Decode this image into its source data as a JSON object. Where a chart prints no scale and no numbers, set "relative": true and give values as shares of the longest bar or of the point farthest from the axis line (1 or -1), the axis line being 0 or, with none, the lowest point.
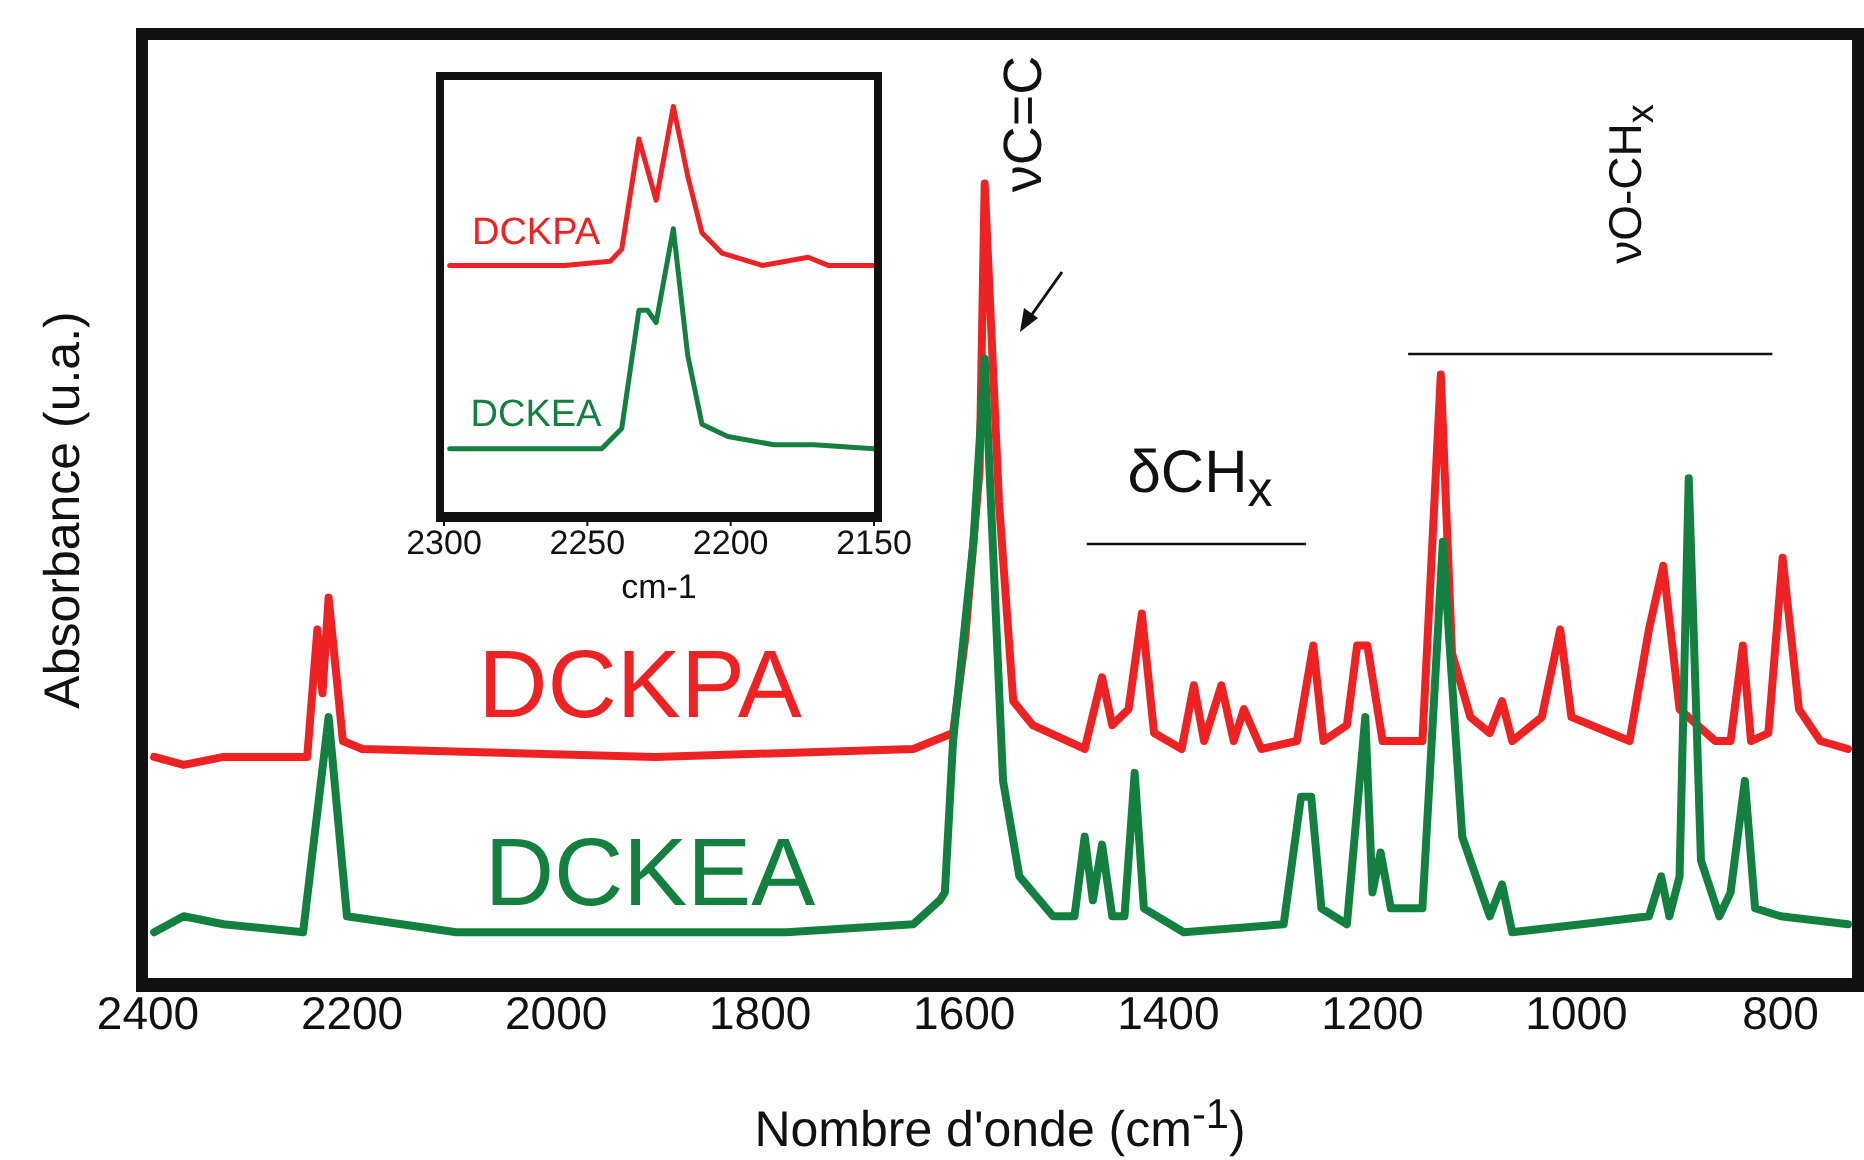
{
  "chart_data": [
    {
      "type": "line",
      "xlabel": "Nombre d'onde (cm$^{-1}$)",
      "ylabel": "Absorbance (u.a.)",
      "relative": true,
      "xlim": [
        2400,
        730
      ],
      "xticks": [
        2400,
        2200,
        2000,
        1800,
        1600,
        1400,
        1200,
        1000,
        800
      ],
      "annotations": [
        "νC=C",
        "δCH$_{x}$",
        "νO-CH$_{x}$"
      ],
      "series": [
        {
          "name": "DCKPA",
          "color": "#ee2222",
          "x": [
            2394,
            2365,
            2326,
            2244,
            2234,
            2229,
            2223,
            2209,
            2190,
            1903,
            1650,
            1611,
            1599,
            1585,
            1580,
            1566,
            1552,
            1533,
            1482,
            1465,
            1455,
            1439,
            1426,
            1414,
            1387,
            1375,
            1365,
            1348,
            1336,
            1326,
            1309,
            1274,
            1258,
            1248,
            1225,
            1215,
            1205,
            1200,
            1190,
            1151,
            1133,
            1122,
            1104,
            1085,
            1073,
            1063,
            1034,
            1016,
            1005,
            948,
            929,
            915,
            899,
            864,
            849,
            837,
            829,
            812,
            798,
            782,
            761,
            734
          ],
          "values": [
            0.28,
            0.27,
            0.28,
            0.28,
            0.44,
            0.36,
            0.48,
            0.3,
            0.29,
            0.28,
            0.29,
            0.31,
            0.43,
            0.64,
            1.0,
            0.6,
            0.35,
            0.32,
            0.29,
            0.38,
            0.32,
            0.34,
            0.46,
            0.31,
            0.29,
            0.37,
            0.3,
            0.37,
            0.3,
            0.34,
            0.29,
            0.3,
            0.42,
            0.3,
            0.32,
            0.42,
            0.42,
            0.38,
            0.3,
            0.3,
            0.76,
            0.41,
            0.33,
            0.31,
            0.35,
            0.3,
            0.33,
            0.44,
            0.33,
            0.3,
            0.44,
            0.52,
            0.34,
            0.3,
            0.3,
            0.42,
            0.3,
            0.31,
            0.53,
            0.34,
            0.3,
            0.29
          ]
        },
        {
          "name": "DCKEA",
          "color": "#138040",
          "x": [
            2394,
            2365,
            2326,
            2248,
            2223,
            2205,
            2098,
            1774,
            1650,
            1624,
            1619,
            1611,
            1591,
            1580,
            1562,
            1546,
            1513,
            1492,
            1482,
            1474,
            1465,
            1455,
            1443,
            1433,
            1424,
            1385,
            1287,
            1270,
            1260,
            1250,
            1225,
            1207,
            1200,
            1192,
            1182,
            1151,
            1131,
            1112,
            1085,
            1073,
            1063,
            995,
            929,
            917,
            909,
            899,
            890,
            878,
            860,
            849,
            835,
            825,
            800,
            734
          ],
          "values": [
            0.06,
            0.08,
            0.07,
            0.06,
            0.33,
            0.08,
            0.06,
            0.06,
            0.07,
            0.1,
            0.11,
            0.3,
            0.55,
            0.78,
            0.25,
            0.13,
            0.08,
            0.08,
            0.18,
            0.1,
            0.17,
            0.08,
            0.08,
            0.26,
            0.09,
            0.06,
            0.07,
            0.23,
            0.23,
            0.09,
            0.07,
            0.33,
            0.11,
            0.16,
            0.09,
            0.09,
            0.55,
            0.18,
            0.08,
            0.12,
            0.06,
            0.07,
            0.08,
            0.13,
            0.08,
            0.13,
            0.63,
            0.15,
            0.08,
            0.11,
            0.25,
            0.09,
            0.08,
            0.07
          ]
        }
      ]
    },
    {
      "type": "line",
      "xlabel": "cm-1",
      "relative": true,
      "xlim": [
        2300,
        2150
      ],
      "xticks": [
        2300,
        2250,
        2200,
        2150
      ],
      "series": [
        {
          "name": "DCKPA",
          "color": "#ee2222",
          "x": [
            2298,
            2258,
            2242,
            2238,
            2232,
            2226,
            2220,
            2215,
            2210,
            2203,
            2189,
            2173,
            2166,
            2150
          ],
          "values": [
            0.61,
            0.61,
            0.62,
            0.65,
            0.92,
            0.77,
            1.0,
            0.83,
            0.69,
            0.64,
            0.61,
            0.63,
            0.61,
            0.61
          ]
        },
        {
          "name": "DCKEA",
          "color": "#138040",
          "x": [
            2298,
            2245,
            2238,
            2232,
            2229,
            2226,
            2220,
            2215,
            2210,
            2201,
            2185,
            2171,
            2150
          ],
          "values": [
            0.16,
            0.16,
            0.21,
            0.5,
            0.5,
            0.47,
            0.7,
            0.39,
            0.22,
            0.19,
            0.17,
            0.17,
            0.16
          ]
        }
      ]
    }
  ]
}
